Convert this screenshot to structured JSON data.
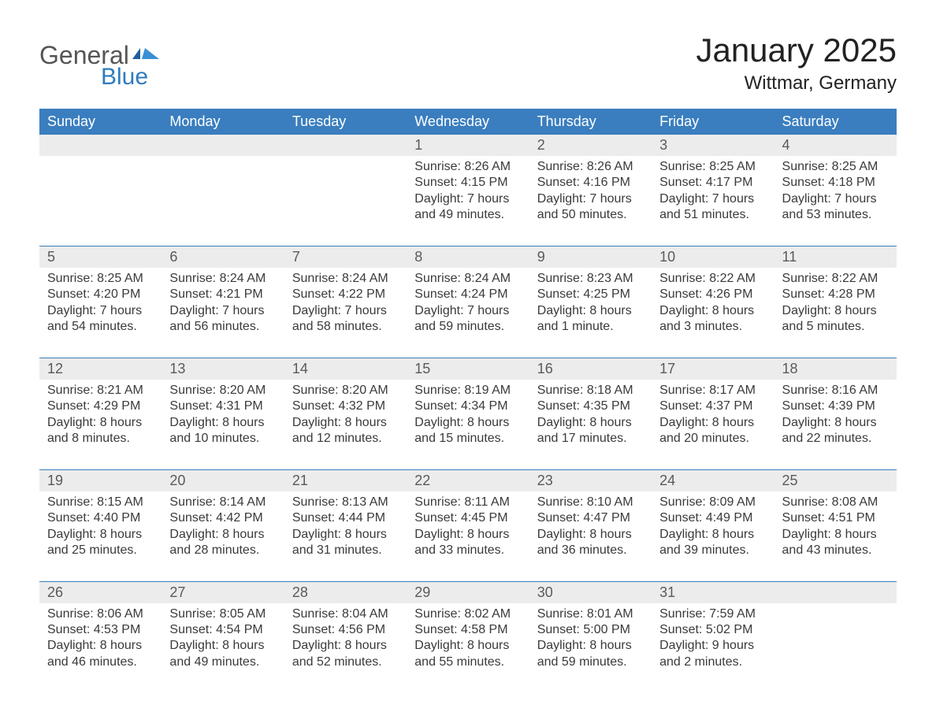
{
  "logo": {
    "word1": "General",
    "word2": "Blue"
  },
  "title": "January 2025",
  "location": "Wittmar, Germany",
  "colors": {
    "header_bg": "#3a7ebf",
    "header_text": "#ffffff",
    "daynum_bg": "#ececec",
    "week_border": "#3a7ebf",
    "body_text": "#3a3a3a",
    "logo_gray": "#555555",
    "logo_blue": "#2f7bbf"
  },
  "day_headers": [
    "Sunday",
    "Monday",
    "Tuesday",
    "Wednesday",
    "Thursday",
    "Friday",
    "Saturday"
  ],
  "weeks": [
    {
      "days": [
        {
          "num": "",
          "sunrise": "",
          "sunset": "",
          "daylight1": "",
          "daylight2": ""
        },
        {
          "num": "",
          "sunrise": "",
          "sunset": "",
          "daylight1": "",
          "daylight2": ""
        },
        {
          "num": "",
          "sunrise": "",
          "sunset": "",
          "daylight1": "",
          "daylight2": ""
        },
        {
          "num": "1",
          "sunrise": "Sunrise: 8:26 AM",
          "sunset": "Sunset: 4:15 PM",
          "daylight1": "Daylight: 7 hours",
          "daylight2": "and 49 minutes."
        },
        {
          "num": "2",
          "sunrise": "Sunrise: 8:26 AM",
          "sunset": "Sunset: 4:16 PM",
          "daylight1": "Daylight: 7 hours",
          "daylight2": "and 50 minutes."
        },
        {
          "num": "3",
          "sunrise": "Sunrise: 8:25 AM",
          "sunset": "Sunset: 4:17 PM",
          "daylight1": "Daylight: 7 hours",
          "daylight2": "and 51 minutes."
        },
        {
          "num": "4",
          "sunrise": "Sunrise: 8:25 AM",
          "sunset": "Sunset: 4:18 PM",
          "daylight1": "Daylight: 7 hours",
          "daylight2": "and 53 minutes."
        }
      ]
    },
    {
      "days": [
        {
          "num": "5",
          "sunrise": "Sunrise: 8:25 AM",
          "sunset": "Sunset: 4:20 PM",
          "daylight1": "Daylight: 7 hours",
          "daylight2": "and 54 minutes."
        },
        {
          "num": "6",
          "sunrise": "Sunrise: 8:24 AM",
          "sunset": "Sunset: 4:21 PM",
          "daylight1": "Daylight: 7 hours",
          "daylight2": "and 56 minutes."
        },
        {
          "num": "7",
          "sunrise": "Sunrise: 8:24 AM",
          "sunset": "Sunset: 4:22 PM",
          "daylight1": "Daylight: 7 hours",
          "daylight2": "and 58 minutes."
        },
        {
          "num": "8",
          "sunrise": "Sunrise: 8:24 AM",
          "sunset": "Sunset: 4:24 PM",
          "daylight1": "Daylight: 7 hours",
          "daylight2": "and 59 minutes."
        },
        {
          "num": "9",
          "sunrise": "Sunrise: 8:23 AM",
          "sunset": "Sunset: 4:25 PM",
          "daylight1": "Daylight: 8 hours",
          "daylight2": "and 1 minute."
        },
        {
          "num": "10",
          "sunrise": "Sunrise: 8:22 AM",
          "sunset": "Sunset: 4:26 PM",
          "daylight1": "Daylight: 8 hours",
          "daylight2": "and 3 minutes."
        },
        {
          "num": "11",
          "sunrise": "Sunrise: 8:22 AM",
          "sunset": "Sunset: 4:28 PM",
          "daylight1": "Daylight: 8 hours",
          "daylight2": "and 5 minutes."
        }
      ]
    },
    {
      "days": [
        {
          "num": "12",
          "sunrise": "Sunrise: 8:21 AM",
          "sunset": "Sunset: 4:29 PM",
          "daylight1": "Daylight: 8 hours",
          "daylight2": "and 8 minutes."
        },
        {
          "num": "13",
          "sunrise": "Sunrise: 8:20 AM",
          "sunset": "Sunset: 4:31 PM",
          "daylight1": "Daylight: 8 hours",
          "daylight2": "and 10 minutes."
        },
        {
          "num": "14",
          "sunrise": "Sunrise: 8:20 AM",
          "sunset": "Sunset: 4:32 PM",
          "daylight1": "Daylight: 8 hours",
          "daylight2": "and 12 minutes."
        },
        {
          "num": "15",
          "sunrise": "Sunrise: 8:19 AM",
          "sunset": "Sunset: 4:34 PM",
          "daylight1": "Daylight: 8 hours",
          "daylight2": "and 15 minutes."
        },
        {
          "num": "16",
          "sunrise": "Sunrise: 8:18 AM",
          "sunset": "Sunset: 4:35 PM",
          "daylight1": "Daylight: 8 hours",
          "daylight2": "and 17 minutes."
        },
        {
          "num": "17",
          "sunrise": "Sunrise: 8:17 AM",
          "sunset": "Sunset: 4:37 PM",
          "daylight1": "Daylight: 8 hours",
          "daylight2": "and 20 minutes."
        },
        {
          "num": "18",
          "sunrise": "Sunrise: 8:16 AM",
          "sunset": "Sunset: 4:39 PM",
          "daylight1": "Daylight: 8 hours",
          "daylight2": "and 22 minutes."
        }
      ]
    },
    {
      "days": [
        {
          "num": "19",
          "sunrise": "Sunrise: 8:15 AM",
          "sunset": "Sunset: 4:40 PM",
          "daylight1": "Daylight: 8 hours",
          "daylight2": "and 25 minutes."
        },
        {
          "num": "20",
          "sunrise": "Sunrise: 8:14 AM",
          "sunset": "Sunset: 4:42 PM",
          "daylight1": "Daylight: 8 hours",
          "daylight2": "and 28 minutes."
        },
        {
          "num": "21",
          "sunrise": "Sunrise: 8:13 AM",
          "sunset": "Sunset: 4:44 PM",
          "daylight1": "Daylight: 8 hours",
          "daylight2": "and 31 minutes."
        },
        {
          "num": "22",
          "sunrise": "Sunrise: 8:11 AM",
          "sunset": "Sunset: 4:45 PM",
          "daylight1": "Daylight: 8 hours",
          "daylight2": "and 33 minutes."
        },
        {
          "num": "23",
          "sunrise": "Sunrise: 8:10 AM",
          "sunset": "Sunset: 4:47 PM",
          "daylight1": "Daylight: 8 hours",
          "daylight2": "and 36 minutes."
        },
        {
          "num": "24",
          "sunrise": "Sunrise: 8:09 AM",
          "sunset": "Sunset: 4:49 PM",
          "daylight1": "Daylight: 8 hours",
          "daylight2": "and 39 minutes."
        },
        {
          "num": "25",
          "sunrise": "Sunrise: 8:08 AM",
          "sunset": "Sunset: 4:51 PM",
          "daylight1": "Daylight: 8 hours",
          "daylight2": "and 43 minutes."
        }
      ]
    },
    {
      "days": [
        {
          "num": "26",
          "sunrise": "Sunrise: 8:06 AM",
          "sunset": "Sunset: 4:53 PM",
          "daylight1": "Daylight: 8 hours",
          "daylight2": "and 46 minutes."
        },
        {
          "num": "27",
          "sunrise": "Sunrise: 8:05 AM",
          "sunset": "Sunset: 4:54 PM",
          "daylight1": "Daylight: 8 hours",
          "daylight2": "and 49 minutes."
        },
        {
          "num": "28",
          "sunrise": "Sunrise: 8:04 AM",
          "sunset": "Sunset: 4:56 PM",
          "daylight1": "Daylight: 8 hours",
          "daylight2": "and 52 minutes."
        },
        {
          "num": "29",
          "sunrise": "Sunrise: 8:02 AM",
          "sunset": "Sunset: 4:58 PM",
          "daylight1": "Daylight: 8 hours",
          "daylight2": "and 55 minutes."
        },
        {
          "num": "30",
          "sunrise": "Sunrise: 8:01 AM",
          "sunset": "Sunset: 5:00 PM",
          "daylight1": "Daylight: 8 hours",
          "daylight2": "and 59 minutes."
        },
        {
          "num": "31",
          "sunrise": "Sunrise: 7:59 AM",
          "sunset": "Sunset: 5:02 PM",
          "daylight1": "Daylight: 9 hours",
          "daylight2": "and 2 minutes."
        },
        {
          "num": "",
          "sunrise": "",
          "sunset": "",
          "daylight1": "",
          "daylight2": ""
        }
      ]
    }
  ]
}
